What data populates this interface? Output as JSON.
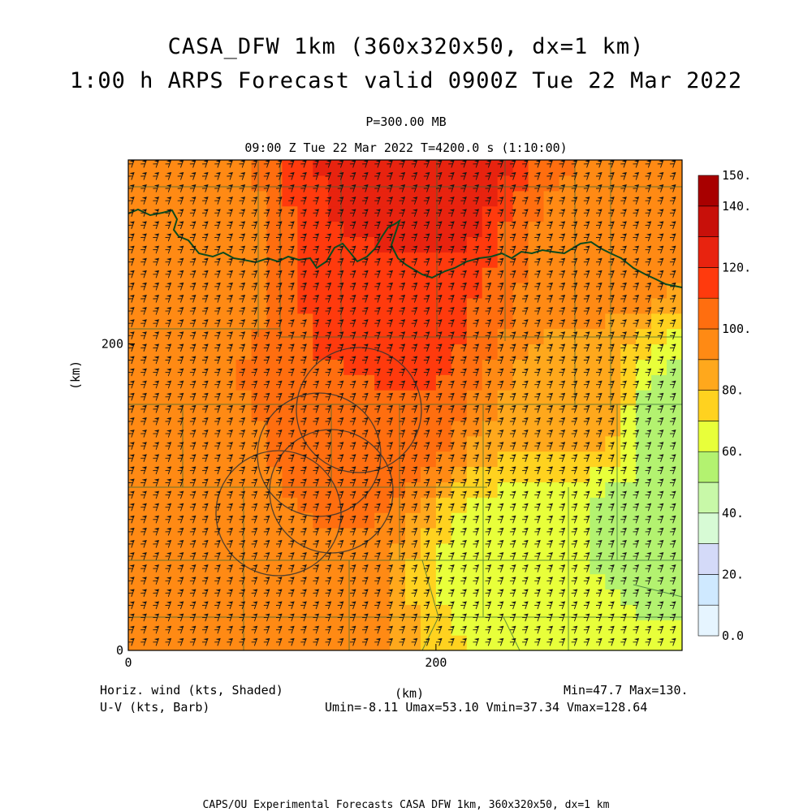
{
  "figure": {
    "title_line1": "CASA_DFW 1km (360x320x50, dx=1 km)",
    "title_line2": "1:00 h ARPS Forecast valid 0900Z Tue 22 Mar 2022",
    "pressure_label": "P=300.00 MB",
    "time_label": "09:00 Z Tue 22 Mar 2022   T=4200.0 s (1:10:00)",
    "left_info_line1": "Horiz. wind (kts, Shaded)",
    "left_info_line2": "U-V (kts, Barb)",
    "center_xlabel": "(km)",
    "minmax_label": "Min=47.7 Max=130.",
    "uv_stats_label": "Umin=-8.11 Umax=53.10 Vmin=37.34 Vmax=128.64",
    "footer": "CAPS/OU Experimental Forecasts  CASA DFW 1km, 360x320x50, dx=1 km"
  },
  "chart_data": {
    "type": "heatmap",
    "title": "CASA_DFW 1km (360x320x50, dx=1 km)",
    "subtitle": "1:00 h ARPS Forecast valid 0900Z Tue 22 Mar 2022",
    "xlabel": "(km)",
    "ylabel": "(km)",
    "xlim": [
      0,
      360
    ],
    "ylim": [
      0,
      320
    ],
    "x_ticks": [
      {
        "value": 0,
        "label": "0"
      },
      {
        "value": 200,
        "label": "200"
      }
    ],
    "y_ticks": [
      {
        "value": 0,
        "label": "0"
      },
      {
        "value": 200,
        "label": "200"
      }
    ],
    "variable": "Horiz. wind (kts, Shaded)",
    "barbs": "U-V (kts, Barb)",
    "min": 47.7,
    "max": 130,
    "umin": -8.11,
    "umax": 53.1,
    "vmin": 37.34,
    "vmax": 128.64,
    "colorbar": {
      "levels": [
        0,
        10,
        20,
        30,
        40,
        50,
        60,
        70,
        80,
        90,
        100,
        110,
        120,
        130,
        140,
        150
      ],
      "labels": [
        "0.0",
        "20.",
        "40.",
        "60.",
        "80.",
        "100.",
        "120.",
        "140.",
        "150."
      ],
      "label_values": [
        0,
        20,
        40,
        60,
        80,
        100,
        120,
        140,
        150
      ],
      "colors": [
        "#e6f5ff",
        "#cfe9ff",
        "#d4daf8",
        "#d7fbd5",
        "#c8f8a8",
        "#b3f270",
        "#e8ff3a",
        "#ffd21f",
        "#ffa81c",
        "#ff8a14",
        "#ff6e0f",
        "#ff3a0d",
        "#e8230f",
        "#c8100a",
        "#a80000"
      ]
    },
    "field_samples": [
      {
        "x": 190,
        "y": 310,
        "value": 128
      },
      {
        "x": 170,
        "y": 270,
        "value": 120
      },
      {
        "x": 170,
        "y": 200,
        "value": 112
      },
      {
        "x": 150,
        "y": 140,
        "value": 105
      },
      {
        "x": 40,
        "y": 260,
        "value": 92
      },
      {
        "x": 40,
        "y": 100,
        "value": 94
      },
      {
        "x": 110,
        "y": 10,
        "value": 95
      },
      {
        "x": 300,
        "y": 260,
        "value": 98
      },
      {
        "x": 300,
        "y": 160,
        "value": 85
      },
      {
        "x": 250,
        "y": 60,
        "value": 65
      },
      {
        "x": 330,
        "y": 80,
        "value": 58
      },
      {
        "x": 350,
        "y": 150,
        "value": 55
      }
    ],
    "grid": false,
    "legend_placement": "right colorbar"
  }
}
